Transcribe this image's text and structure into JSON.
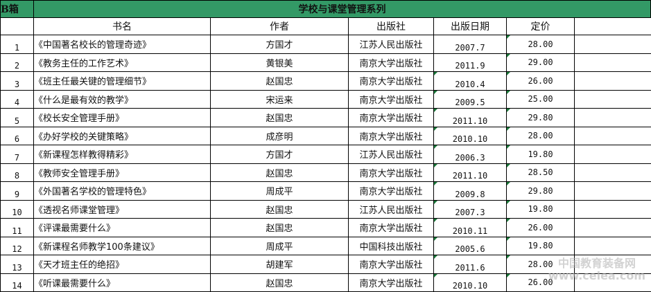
{
  "sheet": {
    "box_label": "B箱",
    "title": "学校与课堂管理系列",
    "headers": {
      "title": "书名",
      "author": "作者",
      "publisher": "出版社",
      "date": "出版日期",
      "price": "定价"
    },
    "header_color": "#339966",
    "rows": [
      {
        "no": "1",
        "title": "《中国著名校长的管理奇迹》",
        "author": "方国才",
        "publisher": "江苏人民出版社",
        "date": "2007.7",
        "price": "28.00"
      },
      {
        "no": "2",
        "title": "《教务主任的工作艺术》",
        "author": "黄银美",
        "publisher": "南京大学出版社",
        "date": "2011.9",
        "price": "29.00"
      },
      {
        "no": "3",
        "title": "《班主任最关键的管理细节》",
        "author": "赵国忠",
        "publisher": "南京大学出版社",
        "date": "2010.4",
        "price": "26.00"
      },
      {
        "no": "4",
        "title": "《什么是最有效的教学》",
        "author": "宋运来",
        "publisher": "南京大学出版社",
        "date": "2009.5",
        "price": "25.00"
      },
      {
        "no": "5",
        "title": "《校长安全管理手册》",
        "author": "赵国忠",
        "publisher": "南京大学出版社",
        "date": "2011.10",
        "price": "29.80"
      },
      {
        "no": "6",
        "title": "《办好学校的关键策略》",
        "author": "成彦明",
        "publisher": "南京大学出版社",
        "date": "2010.10",
        "price": "28.00"
      },
      {
        "no": "7",
        "title": "《新课程怎样教得精彩》",
        "author": "方国才",
        "publisher": "江苏人民出版社",
        "date": "2006.3",
        "price": "19.80"
      },
      {
        "no": "8",
        "title": "《教师安全管理手册》",
        "author": "赵国忠",
        "publisher": "南京大学出版社",
        "date": "2011.10",
        "price": "28.50"
      },
      {
        "no": "9",
        "title": "《外国著名学校的管理特色》",
        "author": "周成平",
        "publisher": "南京大学出版社",
        "date": "2009.8",
        "price": "29.80"
      },
      {
        "no": "10",
        "title": "《透视名师课堂管理》",
        "author": "赵国忠",
        "publisher": "江苏人民出版社",
        "date": "2007.3",
        "price": "19.80"
      },
      {
        "no": "11",
        "title": "《评课最需要什么》",
        "author": "赵国忠",
        "publisher": "南京大学出版社",
        "date": "2010.11",
        "price": "26.00"
      },
      {
        "no": "12",
        "title": "《新课程名师教学100条建议》",
        "author": "周成平",
        "publisher": "中国科技出版社",
        "date": "2005.6",
        "price": "19.80"
      },
      {
        "no": "13",
        "title": "《天才班主任的绝招》",
        "author": "胡建军",
        "publisher": "南京大学出版社",
        "date": "2011.6",
        "price": "28.00"
      },
      {
        "no": "14",
        "title": "《听课最需要什么》",
        "author": "赵国忠",
        "publisher": "南京大学出版社",
        "date": "2010.10",
        "price": "26.00"
      }
    ]
  },
  "watermark": {
    "line1": "中国教育装备网",
    "line2": "www.celea.com"
  }
}
